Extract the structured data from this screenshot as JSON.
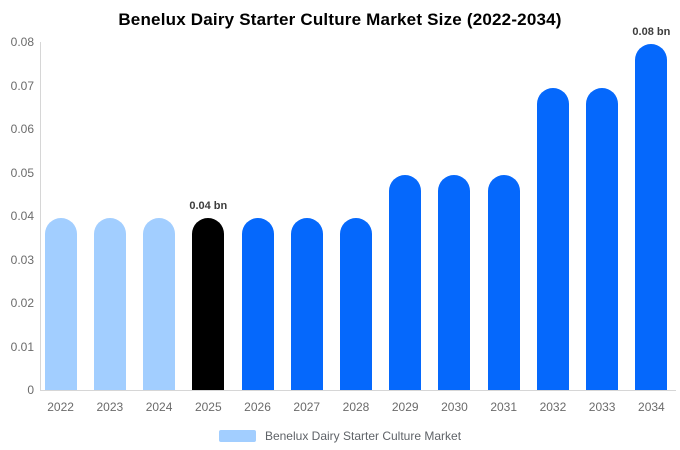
{
  "title": "Benelux Dairy Starter Culture Market Size (2022-2034)",
  "colors": {
    "title_text": "#000000",
    "axis_line": "#d6d6d6",
    "tick_text": "#6b6b6b",
    "annotation_text": "#3d3d3d",
    "legend_text": "#5f6368",
    "bar_past": "#a2ceff",
    "bar_current": "#000000",
    "bar_forecast": "#0568fc"
  },
  "legend": {
    "label": "Benelux Dairy Starter Culture Market",
    "swatch_color": "#a2ceff"
  },
  "chart_data": {
    "type": "bar",
    "title": "Benelux Dairy Starter Culture Market Size (2022-2034)",
    "xlabel": "",
    "ylabel": "",
    "grid": false,
    "legend_position": "bottom",
    "ylim": [
      0,
      0.08
    ],
    "ytick_values": [
      0,
      0.01,
      0.02,
      0.03,
      0.04,
      0.05,
      0.06,
      0.07,
      0.08
    ],
    "ytick_labels": [
      "0",
      "0.01",
      "0.02",
      "0.03",
      "0.04",
      "0.05",
      "0.06",
      "0.07",
      "0.08"
    ],
    "categories": [
      "2022",
      "2023",
      "2024",
      "2025",
      "2026",
      "2027",
      "2028",
      "2029",
      "2030",
      "2031",
      "2032",
      "2033",
      "2034"
    ],
    "values": [
      0.0395,
      0.0395,
      0.0395,
      0.0395,
      0.0395,
      0.0395,
      0.0395,
      0.0495,
      0.0495,
      0.0495,
      0.0695,
      0.0695,
      0.0795
    ],
    "bar_colors": [
      "#a2ceff",
      "#a2ceff",
      "#a2ceff",
      "#000000",
      "#0568fc",
      "#0568fc",
      "#0568fc",
      "#0568fc",
      "#0568fc",
      "#0568fc",
      "#0568fc",
      "#0568fc",
      "#0568fc"
    ],
    "annotations": [
      {
        "category": "2025",
        "text": "0.04 bn"
      },
      {
        "category": "2034",
        "text": "0.08 bn"
      }
    ]
  }
}
